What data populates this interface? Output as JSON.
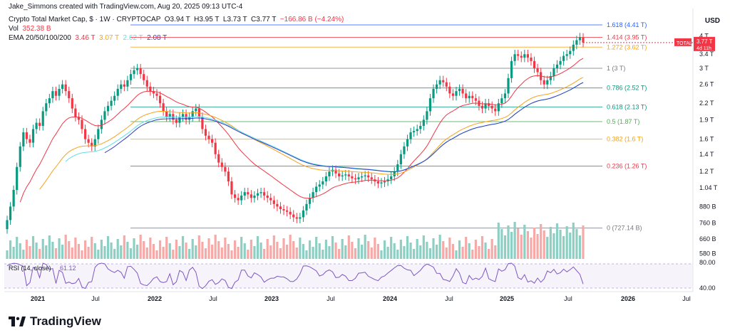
{
  "creator": "Jake_Simmons created with TradingView.com, Aug 20, 2025 09:13 UTC-4",
  "legend": {
    "symbol": "Crypto Total Market Cap, $ · 1W · CRYPTOCAP",
    "ohlc": {
      "o": "O3.94 T",
      "h": "H3.95 T",
      "l": "L3.73 T",
      "c": "C3.77 T",
      "chg": "−166.86 B (−4.24%)"
    },
    "vol_label": "Vol",
    "vol_value": "352.38 B",
    "ema_label": "EMA 20/50/100/200",
    "ema_values": [
      "3.46 T",
      "3.07 T",
      "2.62 T",
      "2.08 T"
    ],
    "ema_colors": [
      "#f23645",
      "#f7a21b",
      "#5ee0e8",
      "#2f3cc5"
    ]
  },
  "currency": "USD",
  "branding": "TradingView",
  "chart_data": {
    "type": "candlestick",
    "title": "Crypto Total Market Cap, $ · 1W · CRYPTOCAP",
    "y_axis_ticks": [
      "4 T",
      "3.4 T",
      "3 T",
      "2.6 T",
      "2.2 T",
      "1.9 T",
      "1.6 T",
      "1.4 T",
      "1.2 T",
      "1.04 T",
      "880 B",
      "760 B",
      "660 B",
      "580 B"
    ],
    "y_axis_values": [
      4.0,
      3.4,
      3.0,
      2.6,
      2.2,
      1.9,
      1.6,
      1.4,
      1.2,
      1.04,
      0.88,
      0.76,
      0.66,
      0.58
    ],
    "y_scale": "log",
    "x_axis_ticks": [
      "2021",
      "Jul",
      "2022",
      "Jul",
      "2023",
      "Jul",
      "2024",
      "Jul",
      "2025",
      "Jul",
      "2026",
      "Jul"
    ],
    "price_tag": {
      "label": "TOTAL",
      "value": "3.77 T",
      "sub": "4d 11h"
    },
    "fibonacci": [
      {
        "label": "1.618 (4.41 T)",
        "value": 4.41,
        "color": "#2962ff"
      },
      {
        "label": "1.414 (3.95 T)",
        "value": 3.95,
        "color": "#f23645"
      },
      {
        "label": "1.272 (3.62 T)",
        "value": 3.62,
        "color": "#f7a21b"
      },
      {
        "label": "1 (3 T)",
        "value": 3.0,
        "color": "#787b86"
      },
      {
        "label": "0.786 (2.52 T)",
        "value": 2.52,
        "color": "#089981"
      },
      {
        "label": "0.618 (2.13 T)",
        "value": 2.13,
        "color": "#089981"
      },
      {
        "label": "0.5 (1.87 T)",
        "value": 1.87,
        "color": "#4caf50"
      },
      {
        "label": "0.382 (1.6 T)",
        "value": 1.6,
        "color": "#f7a21b"
      },
      {
        "label": "0.236 (1.26 T)",
        "value": 1.26,
        "color": "#f23645"
      },
      {
        "label": "0 (727.14 B)",
        "value": 0.727,
        "color": "#787b86"
      }
    ],
    "closes": [
      0.78,
      0.88,
      1.02,
      1.25,
      1.5,
      1.7,
      1.6,
      1.55,
      1.75,
      1.85,
      1.8,
      2.05,
      2.2,
      2.3,
      2.45,
      2.35,
      2.5,
      2.6,
      2.45,
      2.3,
      2.1,
      1.95,
      1.9,
      1.75,
      1.6,
      1.55,
      1.5,
      1.6,
      1.75,
      1.9,
      2.05,
      2.15,
      2.25,
      2.35,
      2.5,
      2.6,
      2.55,
      2.7,
      2.85,
      2.95,
      3.0,
      2.85,
      2.7,
      2.55,
      2.45,
      2.4,
      2.35,
      2.2,
      2.05,
      1.95,
      2.0,
      1.9,
      1.85,
      1.95,
      2.0,
      1.9,
      1.95,
      2.05,
      2.1,
      1.95,
      1.75,
      1.65,
      1.6,
      1.55,
      1.4,
      1.3,
      1.25,
      1.2,
      1.1,
      0.98,
      0.95,
      0.93,
      0.97,
      1.0,
      0.98,
      0.95,
      0.97,
      0.99,
      1.0,
      0.97,
      0.95,
      0.93,
      0.9,
      0.88,
      0.86,
      0.85,
      0.84,
      0.82,
      0.8,
      0.79,
      0.8,
      0.85,
      0.9,
      0.95,
      1.0,
      1.05,
      1.07,
      1.1,
      1.15,
      1.2,
      1.22,
      1.18,
      1.15,
      1.16,
      1.17,
      1.15,
      1.13,
      1.12,
      1.14,
      1.15,
      1.16,
      1.14,
      1.12,
      1.1,
      1.08,
      1.09,
      1.1,
      1.12,
      1.15,
      1.2,
      1.28,
      1.4,
      1.5,
      1.6,
      1.7,
      1.72,
      1.75,
      1.8,
      1.9,
      2.05,
      2.3,
      2.5,
      2.6,
      2.7,
      2.65,
      2.55,
      2.4,
      2.35,
      2.45,
      2.5,
      2.4,
      2.3,
      2.35,
      2.3,
      2.25,
      2.15,
      2.1,
      2.2,
      2.15,
      2.1,
      2.05,
      2.2,
      2.3,
      2.4,
      2.75,
      3.2,
      3.4,
      3.35,
      3.3,
      3.4,
      3.3,
      3.2,
      3.0,
      2.9,
      2.7,
      2.6,
      2.7,
      2.8,
      3.0,
      3.1,
      3.2,
      3.35,
      3.4,
      3.5,
      3.7,
      3.85,
      3.95,
      3.77
    ],
    "ema_series": [
      "EMA 20",
      "EMA 50",
      "EMA 100",
      "EMA 200"
    ],
    "volume_ticks": [],
    "rsi": {
      "label": "RSI (14, close)",
      "value": "61.12",
      "ticks": [
        "80.00",
        "40.00"
      ],
      "tick_values": [
        80,
        40
      ]
    }
  }
}
